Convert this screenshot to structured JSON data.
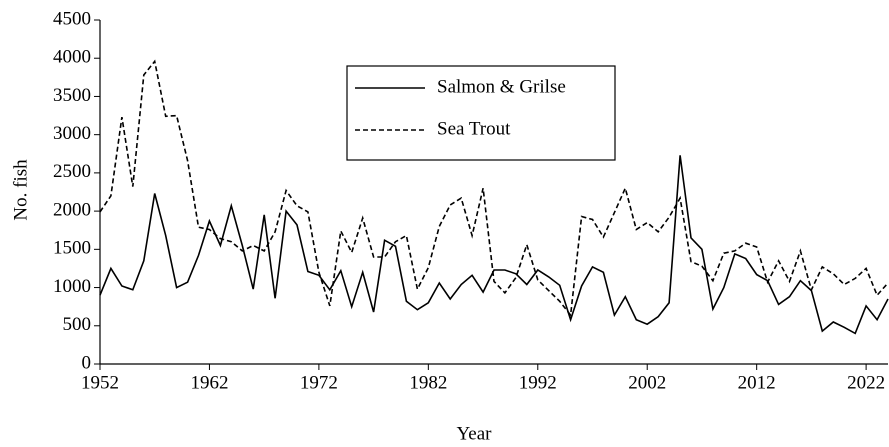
{
  "chart_data": {
    "type": "line",
    "x_label": "Year",
    "y_label": "No. fish",
    "x": [
      1952,
      1953,
      1954,
      1955,
      1956,
      1957,
      1958,
      1959,
      1960,
      1961,
      1962,
      1963,
      1964,
      1965,
      1966,
      1967,
      1968,
      1969,
      1970,
      1971,
      1972,
      1973,
      1974,
      1975,
      1976,
      1977,
      1978,
      1979,
      1980,
      1981,
      1982,
      1983,
      1984,
      1985,
      1986,
      1987,
      1988,
      1989,
      1990,
      1991,
      1992,
      1993,
      1994,
      1995,
      1996,
      1997,
      1998,
      1999,
      2000,
      2001,
      2002,
      2003,
      2004,
      2005,
      2006,
      2007,
      2008,
      2009,
      2010,
      2011,
      2012,
      2013,
      2014,
      2015,
      2016,
      2017,
      2018,
      2019,
      2020,
      2021,
      2022,
      2023,
      2024
    ],
    "series": [
      {
        "name": "Salmon & Grilse",
        "color": "#000000",
        "linestyle": "solid",
        "values": [
          900,
          1250,
          1020,
          970,
          1350,
          2230,
          1680,
          1000,
          1070,
          1420,
          1870,
          1550,
          2070,
          1550,
          980,
          1950,
          860,
          2000,
          1820,
          1210,
          1160,
          970,
          1220,
          750,
          1200,
          680,
          1620,
          1540,
          820,
          710,
          800,
          1060,
          850,
          1040,
          1160,
          940,
          1230,
          1230,
          1180,
          1040,
          1230,
          1140,
          1030,
          580,
          1020,
          1270,
          1200,
          640,
          880,
          580,
          520,
          620,
          800,
          2730,
          1650,
          1500,
          720,
          1000,
          1440,
          1380,
          1170,
          1090,
          780,
          880,
          1090,
          960,
          430,
          550,
          480,
          400,
          760,
          580,
          850
        ]
      },
      {
        "name": "Sea Trout",
        "color": "#000000",
        "linestyle": "dashed",
        "values": [
          1990,
          2200,
          3230,
          2320,
          3780,
          3960,
          3240,
          3250,
          2660,
          1790,
          1760,
          1640,
          1600,
          1480,
          1550,
          1480,
          1730,
          2270,
          2070,
          1990,
          1200,
          760,
          1740,
          1460,
          1910,
          1400,
          1400,
          1600,
          1680,
          980,
          1260,
          1800,
          2080,
          2170,
          1680,
          2300,
          1080,
          930,
          1130,
          1560,
          1100,
          960,
          820,
          640,
          1930,
          1890,
          1660,
          1980,
          2300,
          1760,
          1850,
          1730,
          1920,
          2170,
          1340,
          1280,
          1090,
          1450,
          1480,
          1580,
          1530,
          1070,
          1350,
          1080,
          1480,
          970,
          1270,
          1180,
          1040,
          1120,
          1250,
          900,
          1060
        ]
      }
    ],
    "xlim": [
      1952,
      2024
    ],
    "xticks": [
      1952,
      1962,
      1972,
      1982,
      1992,
      2002,
      2012,
      2022
    ],
    "ylim": [
      0,
      4500
    ],
    "yticks": [
      0,
      500,
      1000,
      1500,
      2000,
      2500,
      3000,
      3500,
      4000,
      4500
    ],
    "grid": false,
    "legend": "top-center"
  }
}
